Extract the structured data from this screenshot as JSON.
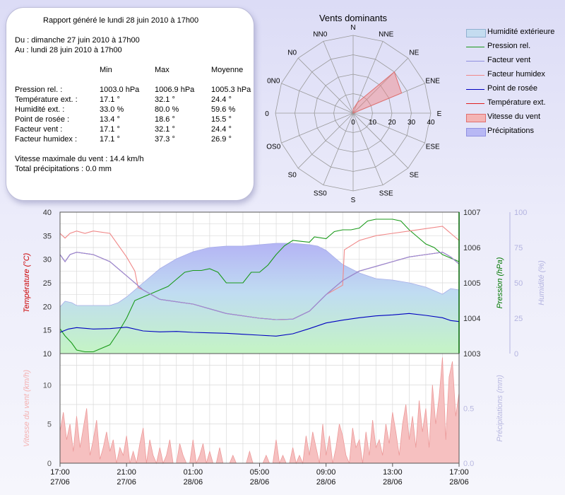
{
  "report": {
    "title": "Rapport généré le lundi 28 juin 2010 à 17h00",
    "from": "Du : dimanche 27 juin 2010 à 17h00",
    "to": "Au : lundi 28 juin 2010 à 17h00",
    "columns": [
      "Min",
      "Max",
      "Moyenne"
    ],
    "rows": [
      {
        "label": "Pression rel. :",
        "min": "1003.0 hPa",
        "max": "1006.9 hPa",
        "avg": "1005.3 hPa"
      },
      {
        "label": "Température ext. :",
        "min": "17.1 °",
        "max": "32.1 °",
        "avg": "24.4 °"
      },
      {
        "label": "Humidité ext. :",
        "min": "33.0 %",
        "max": "80.0 %",
        "avg": "59.6 %"
      },
      {
        "label": "Point de rosée :",
        "min": "13.4 °",
        "max": "18.6 °",
        "avg": "15.5 °"
      },
      {
        "label": "Facteur vent :",
        "min": "17.1 °",
        "max": "32.1 °",
        "avg": "24.4 °"
      },
      {
        "label": "Facteur humidex :",
        "min": "17.1 °",
        "max": "37.3 °",
        "avg": "26.9 °"
      }
    ],
    "max_wind": "Vitesse maximale du vent : 14.4 km/h",
    "total_precip": "Total précipitations : 0.0 mm"
  },
  "legend": [
    {
      "label": "Humidité extérieure",
      "kind": "area",
      "color": "#c4dcf0",
      "border": "#90b0d0"
    },
    {
      "label": "Pression rel.",
      "kind": "line",
      "color": "#1a9a1a"
    },
    {
      "label": "Facteur vent",
      "kind": "line",
      "color": "#9090e0"
    },
    {
      "label": "Facteur humidex",
      "kind": "line",
      "color": "#f08888"
    },
    {
      "label": "Point de rosée",
      "kind": "line",
      "color": "#0000c0"
    },
    {
      "label": "Température ext.",
      "kind": "line",
      "color": "#e02020"
    },
    {
      "label": "Vitesse du vent",
      "kind": "area",
      "color": "#f4b4b4",
      "border": "#e07070"
    },
    {
      "label": "Précipitations",
      "kind": "area",
      "color": "#b8b8f4",
      "border": "#9090e0"
    }
  ],
  "chart_data": [
    {
      "type": "radar",
      "title": "Vents dominants",
      "directions": [
        "N",
        "NNE",
        "NE",
        "ENE",
        "E",
        "ESE",
        "SE",
        "SSE",
        "S",
        "SS0",
        "S0",
        "OS0",
        "0",
        "0N0",
        "N0",
        "NN0"
      ],
      "values": [
        2,
        6,
        30,
        27,
        0,
        0,
        0,
        0,
        0,
        0,
        0,
        0,
        0,
        0,
        0,
        0
      ],
      "radial_ticks": [
        0,
        10,
        20,
        30,
        40
      ],
      "rmax": 40,
      "color": "#f08080"
    },
    {
      "type": "line",
      "x_ticks": [
        {
          "t": 0,
          "time": "17:00",
          "date": "27/06"
        },
        {
          "t": 4,
          "time": "21:00",
          "date": "27/06"
        },
        {
          "t": 8,
          "time": "01:00",
          "date": "28/06"
        },
        {
          "t": 12,
          "time": "05:00",
          "date": "28/06"
        },
        {
          "t": 16,
          "time": "09:00",
          "date": "28/06"
        },
        {
          "t": 20,
          "time": "13:00",
          "date": "28/06"
        },
        {
          "t": 24,
          "time": "17:00",
          "date": "28/06"
        }
      ],
      "xlim": [
        0,
        24
      ],
      "axes": {
        "temperature": {
          "label": "Température (°C)",
          "ylim": [
            10,
            40
          ],
          "ticks": [
            10,
            15,
            20,
            25,
            30,
            35,
            40
          ],
          "color": "#cc0000"
        },
        "pressure": {
          "label": "Pression (hPa)",
          "ylim": [
            1003,
            1007
          ],
          "ticks": [
            1003,
            1004,
            1005,
            1006,
            1007
          ],
          "color": "#007700"
        },
        "humidity": {
          "label": "Humidité (%)",
          "ylim": [
            0,
            100
          ],
          "ticks": [
            0,
            25,
            50,
            75,
            100
          ],
          "color": "#b4b4e0"
        }
      },
      "series": [
        {
          "name": "Humidité extérieure",
          "axis": "humidity",
          "fill": true,
          "color": "#b8bcf4",
          "x": [
            0,
            0.3,
            0.7,
            1,
            2,
            3,
            3.5,
            4,
            5,
            6,
            7,
            8,
            9,
            10,
            11,
            12,
            13,
            14,
            15,
            15.5,
            16,
            16.5,
            17,
            18,
            19,
            20,
            21,
            22,
            23,
            23.5,
            24
          ],
          "y": [
            33,
            37,
            36,
            34,
            34,
            34,
            36,
            40,
            50,
            60,
            67,
            72,
            75,
            76,
            76,
            77,
            78,
            78,
            77,
            76,
            73,
            68,
            63,
            57,
            53,
            52,
            50,
            47,
            42,
            46,
            45
          ]
        },
        {
          "name": "Pression rel.",
          "axis": "pressure",
          "color": "#1a9a1a",
          "x": [
            0,
            0.3,
            0.7,
            1,
            1.5,
            2,
            3,
            3.5,
            4,
            4.5,
            5,
            5.5,
            6,
            6.5,
            7,
            7.5,
            8,
            8.5,
            9,
            9.5,
            10,
            11,
            11.5,
            12,
            12.5,
            13,
            13.5,
            14,
            15,
            15.3,
            16,
            16.5,
            17,
            17.5,
            18,
            18.5,
            19,
            19.5,
            20,
            20.5,
            21,
            21.5,
            22,
            22.5,
            23,
            23.5,
            24
          ],
          "y": [
            1003.7,
            1003.5,
            1003.3,
            1003.1,
            1003.05,
            1003.05,
            1003.25,
            1003.6,
            1004.0,
            1004.5,
            1004.6,
            1004.7,
            1004.8,
            1004.9,
            1005.1,
            1005.3,
            1005.35,
            1005.35,
            1005.4,
            1005.3,
            1005.0,
            1005.0,
            1005.3,
            1005.3,
            1005.5,
            1005.8,
            1006.05,
            1006.2,
            1006.15,
            1006.3,
            1006.25,
            1006.45,
            1006.5,
            1006.5,
            1006.55,
            1006.75,
            1006.8,
            1006.8,
            1006.8,
            1006.75,
            1006.5,
            1006.3,
            1006.1,
            1006.0,
            1005.8,
            1005.7,
            1005.6
          ]
        },
        {
          "name": "Température ext.",
          "axis": "temperature",
          "color": "#e02020",
          "x": [
            0,
            0.3,
            0.6,
            1,
            2,
            3,
            4,
            5,
            6,
            7,
            8,
            9,
            10,
            11,
            12,
            13,
            14,
            15,
            16,
            17,
            18,
            19,
            20,
            21,
            22,
            23,
            23.5,
            24
          ],
          "y": [
            31,
            29.5,
            31,
            31.5,
            31,
            29.5,
            26.5,
            23.5,
            21.5,
            21,
            20.5,
            19.5,
            18.5,
            18,
            17.5,
            17.2,
            17.3,
            19,
            22.5,
            25.5,
            27.5,
            28.5,
            29.5,
            30.5,
            31,
            31.5,
            30.5,
            29
          ]
        },
        {
          "name": "Facteur humidex",
          "axis": "temperature",
          "color": "#f08888",
          "x": [
            0,
            0.3,
            0.6,
            1,
            1.5,
            2,
            3,
            4,
            4.5,
            4.7,
            5,
            6,
            7,
            8,
            9,
            10,
            11,
            12,
            13,
            14,
            15,
            16,
            17,
            17.1,
            18,
            19,
            20,
            21,
            22,
            23,
            23.5,
            24
          ],
          "y": [
            35.5,
            34.5,
            35.5,
            36,
            35.5,
            36,
            35.5,
            30.5,
            27.5,
            24,
            23.5,
            21.5,
            21,
            20.5,
            19.5,
            18.5,
            18,
            17.5,
            17.2,
            17.3,
            19,
            22.5,
            24.5,
            32,
            34,
            35,
            35.5,
            36,
            36.5,
            37,
            35.5,
            34
          ]
        },
        {
          "name": "Facteur vent",
          "axis": "temperature",
          "color": "#9090e0",
          "x": [
            0,
            0.3,
            0.6,
            1,
            2,
            3,
            4,
            5,
            6,
            7,
            8,
            9,
            10,
            11,
            12,
            13,
            14,
            15,
            16,
            17,
            18,
            19,
            20,
            21,
            22,
            23,
            23.5,
            24
          ],
          "y": [
            31,
            29.5,
            31,
            31.5,
            31,
            29.5,
            26.5,
            23.5,
            21.5,
            21,
            20.5,
            19.5,
            18.5,
            18,
            17.5,
            17.2,
            17.3,
            19,
            22.5,
            25.5,
            27.5,
            28.5,
            29.5,
            30.5,
            31,
            31.5,
            30.5,
            29
          ]
        },
        {
          "name": "Point de rosée",
          "axis": "temperature",
          "color": "#0000c0",
          "x": [
            0,
            0.5,
            1,
            2,
            3,
            4,
            5,
            6,
            7,
            8,
            9,
            10,
            11,
            12,
            13,
            14,
            15,
            16,
            17,
            18,
            19,
            20,
            21,
            22,
            23,
            23.5,
            24
          ],
          "y": [
            14.5,
            15.2,
            15.5,
            15.2,
            15.3,
            15.6,
            14.8,
            14.6,
            14.7,
            14.5,
            14.4,
            14.3,
            14.1,
            13.9,
            13.7,
            14.2,
            15.3,
            16.5,
            17.1,
            17.6,
            18.0,
            18.2,
            18.5,
            18.1,
            17.6,
            17.0,
            16.8
          ]
        }
      ]
    },
    {
      "type": "area",
      "xlim": [
        0,
        24
      ],
      "axes": {
        "wind": {
          "label": "Vitesse du vent (km/h)",
          "ylim": [
            0,
            14
          ],
          "ticks": [
            0,
            5,
            10
          ],
          "color": "#f4b0b0"
        },
        "precip": {
          "label": "Précipitations (mm)",
          "ylim": [
            0,
            1
          ],
          "ticks": [
            0.0,
            0.5
          ],
          "color": "#b8b8e0"
        }
      },
      "series": [
        {
          "name": "Vitesse du vent",
          "axis": "wind",
          "color": "#f4b4b4",
          "x": [
            0,
            0.2,
            0.4,
            0.6,
            0.8,
            1,
            1.2,
            1.4,
            1.6,
            1.8,
            2,
            2.2,
            2.4,
            2.6,
            2.8,
            3,
            3.2,
            3.4,
            3.6,
            3.8,
            4,
            4.2,
            4.4,
            4.6,
            4.8,
            5,
            5.2,
            5.4,
            5.6,
            5.8,
            6,
            6.2,
            6.4,
            6.6,
            6.8,
            7,
            7.2,
            7.4,
            7.6,
            7.8,
            8,
            8.2,
            8.4,
            8.6,
            8.8,
            9,
            9.2,
            9.4,
            9.6,
            9.8,
            10,
            10.2,
            10.4,
            10.6,
            10.8,
            11,
            11.2,
            11.4,
            11.6,
            11.8,
            12,
            12.2,
            12.4,
            12.6,
            12.8,
            13,
            13.2,
            13.4,
            13.6,
            13.8,
            14,
            14.2,
            14.4,
            14.6,
            14.8,
            15,
            15.2,
            15.4,
            15.6,
            15.8,
            16,
            16.2,
            16.4,
            16.6,
            16.8,
            17,
            17.2,
            17.4,
            17.6,
            17.8,
            18,
            18.2,
            18.4,
            18.6,
            18.8,
            19,
            19.2,
            19.4,
            19.6,
            19.8,
            20,
            20.2,
            20.4,
            20.6,
            20.8,
            21,
            21.2,
            21.4,
            21.6,
            21.8,
            22,
            22.2,
            22.4,
            22.6,
            22.8,
            23,
            23.2,
            23.4,
            23.6,
            23.8,
            24
          ],
          "y": [
            4,
            6.5,
            3,
            5,
            1.5,
            6,
            2,
            4.5,
            7,
            1,
            3,
            5.5,
            0.5,
            2,
            4,
            1.5,
            3,
            0,
            2,
            1,
            3.5,
            0,
            1.5,
            0,
            2.5,
            4.5,
            0,
            3,
            1,
            0,
            2,
            0,
            1,
            3,
            0,
            0,
            2.5,
            1,
            0,
            0,
            3,
            0,
            1,
            2.5,
            0,
            1.5,
            0,
            0,
            2,
            0,
            0,
            0,
            1,
            0,
            0,
            0,
            0,
            1.5,
            0,
            0,
            0,
            0,
            1,
            0,
            0,
            3,
            0,
            1,
            0,
            0,
            2,
            0,
            1,
            0,
            3.5,
            1,
            4,
            2,
            0,
            5,
            1,
            3.5,
            0,
            2,
            5,
            3.5,
            1,
            0,
            4.5,
            2,
            3,
            0,
            4,
            1,
            5.5,
            2,
            3,
            1,
            5,
            2.5,
            6.5,
            4,
            1,
            5,
            7.5,
            3,
            6,
            2,
            8,
            4,
            7,
            2,
            10,
            5,
            8.5,
            13.5,
            3,
            11,
            13,
            6,
            9
          ]
        },
        {
          "name": "Précipitations",
          "axis": "precip",
          "color": "#b8b8f4",
          "x": [
            0,
            24
          ],
          "y": [
            0,
            0
          ]
        }
      ]
    }
  ]
}
